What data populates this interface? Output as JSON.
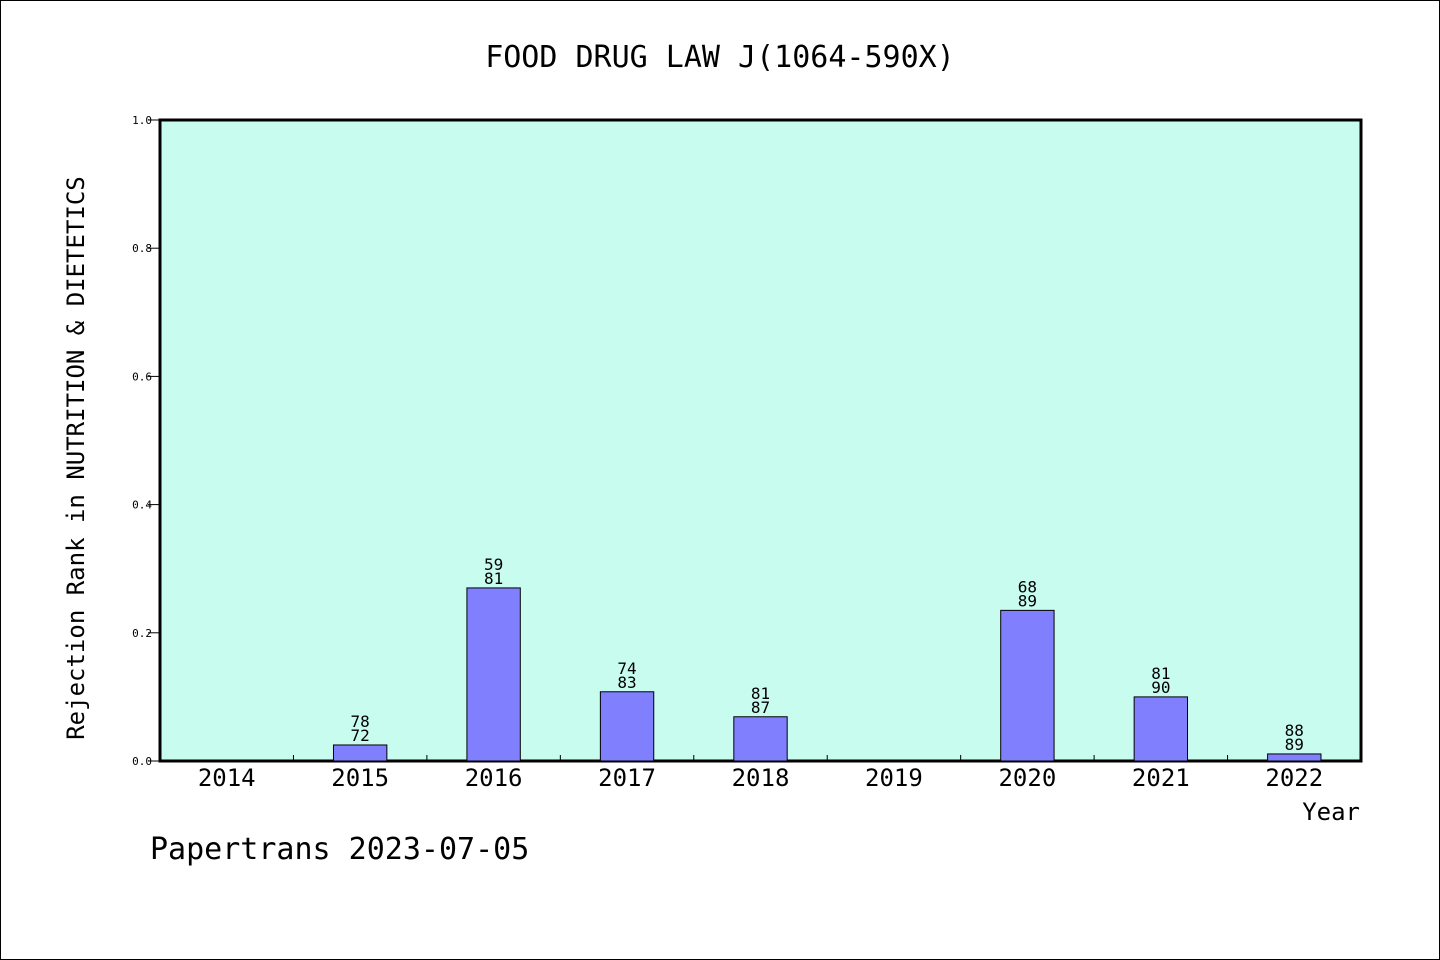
{
  "chart_data": {
    "type": "bar",
    "title": "FOOD DRUG LAW J(1064-590X)",
    "xlabel": "Year",
    "ylabel": "Rejection Rank in NUTRITION & DIETETICS",
    "categories": [
      "2014",
      "2015",
      "2016",
      "2017",
      "2018",
      "2019",
      "2020",
      "2021",
      "2022"
    ],
    "values": [
      0,
      0.025,
      0.27,
      0.108,
      0.069,
      0,
      0.235,
      0.1,
      0.011
    ],
    "bar_labels": [
      null,
      [
        "78",
        "72"
      ],
      [
        "59",
        "81"
      ],
      [
        "74",
        "83"
      ],
      [
        "81",
        "87"
      ],
      null,
      [
        "68",
        "89"
      ],
      [
        "81",
        "90"
      ],
      [
        "88",
        "89"
      ]
    ],
    "ylim": [
      0,
      1.0
    ],
    "yticks": [
      "0.0",
      "0.2",
      "0.4",
      "0.6",
      "0.8",
      "1.0"
    ],
    "grid": false,
    "colors": {
      "plot_background": "#c8fcee",
      "bar_fill": "#8080ff",
      "bar_stroke": "#000000"
    }
  },
  "footer": "Papertrans 2023-07-05"
}
